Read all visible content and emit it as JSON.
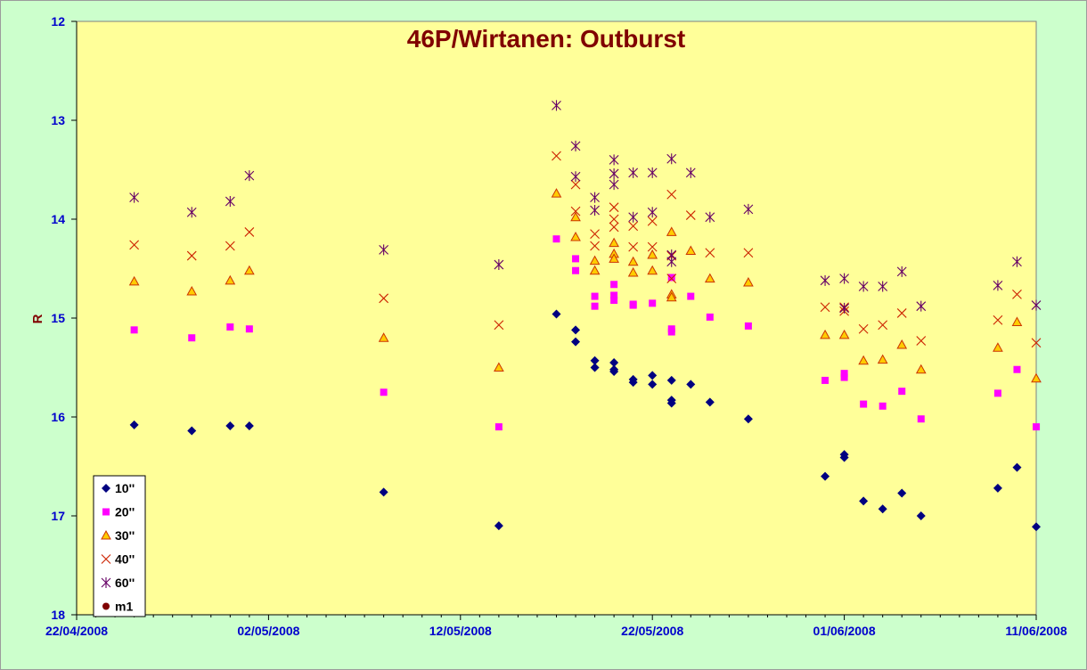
{
  "chart_data": {
    "type": "scatter",
    "title": "46P/Wirtanen: Outburst",
    "xlabel": "",
    "ylabel": "R",
    "ylim": [
      12,
      18
    ],
    "y_inverted": true,
    "y_ticks": [
      "12",
      "13",
      "14",
      "15",
      "16",
      "17",
      "18"
    ],
    "x_range": [
      "2008-04-22",
      "2008-06-11"
    ],
    "x_ticks": [
      "22/04/2008",
      "02/05/2008",
      "12/05/2008",
      "22/05/2008",
      "01/06/2008",
      "11/06/2008"
    ],
    "grid": false,
    "legend_position": "bottom-left",
    "colors": {
      "background": "#ccffcc",
      "plot_area": "#ffff99",
      "axis": "#000000",
      "title": "#800000",
      "ticks": "#0000cc",
      "series_10": "#000080",
      "series_20": "#ff00ff",
      "series_30_fill": "#ffcc00",
      "series_30_edge": "#cc3300",
      "series_40": "#cc2200",
      "series_60": "#660066",
      "series_m1": "#800000"
    },
    "series": [
      {
        "name": "10''",
        "marker": "diamond",
        "points": [
          [
            "2008-04-25",
            16.08
          ],
          [
            "2008-04-28",
            16.14
          ],
          [
            "2008-04-30",
            16.09
          ],
          [
            "2008-05-01",
            16.09
          ],
          [
            "2008-05-08",
            16.76
          ],
          [
            "2008-05-14",
            17.1
          ],
          [
            "2008-05-17",
            14.96
          ],
          [
            "2008-05-18",
            15.12
          ],
          [
            "2008-05-18",
            15.24
          ],
          [
            "2008-05-19",
            15.43
          ],
          [
            "2008-05-19",
            15.5
          ],
          [
            "2008-05-20",
            15.45
          ],
          [
            "2008-05-20",
            15.52
          ],
          [
            "2008-05-20",
            15.54
          ],
          [
            "2008-05-21",
            15.62
          ],
          [
            "2008-05-21",
            15.65
          ],
          [
            "2008-05-22",
            15.58
          ],
          [
            "2008-05-22",
            15.67
          ],
          [
            "2008-05-23",
            15.63
          ],
          [
            "2008-05-23",
            15.83
          ],
          [
            "2008-05-23",
            15.86
          ],
          [
            "2008-05-24",
            15.67
          ],
          [
            "2008-05-25",
            15.85
          ],
          [
            "2008-05-27",
            16.02
          ],
          [
            "2008-05-31",
            16.6
          ],
          [
            "2008-06-01",
            16.38
          ],
          [
            "2008-06-01",
            16.41
          ],
          [
            "2008-06-02",
            16.85
          ],
          [
            "2008-06-03",
            16.93
          ],
          [
            "2008-06-04",
            16.77
          ],
          [
            "2008-06-05",
            17.0
          ],
          [
            "2008-06-09",
            16.72
          ],
          [
            "2008-06-10",
            16.51
          ],
          [
            "2008-06-11",
            17.11
          ]
        ]
      },
      {
        "name": "20''",
        "marker": "square",
        "points": [
          [
            "2008-04-25",
            15.12
          ],
          [
            "2008-04-28",
            15.2
          ],
          [
            "2008-04-30",
            15.09
          ],
          [
            "2008-05-01",
            15.11
          ],
          [
            "2008-05-08",
            15.75
          ],
          [
            "2008-05-14",
            16.1
          ],
          [
            "2008-05-17",
            14.2
          ],
          [
            "2008-05-18",
            14.52
          ],
          [
            "2008-05-18",
            14.4
          ],
          [
            "2008-05-19",
            14.78
          ],
          [
            "2008-05-19",
            14.88
          ],
          [
            "2008-05-20",
            14.66
          ],
          [
            "2008-05-20",
            14.77
          ],
          [
            "2008-05-20",
            14.82
          ],
          [
            "2008-05-21",
            14.86
          ],
          [
            "2008-05-21",
            14.87
          ],
          [
            "2008-05-22",
            14.85
          ],
          [
            "2008-05-23",
            14.59
          ],
          [
            "2008-05-23",
            15.11
          ],
          [
            "2008-05-23",
            15.14
          ],
          [
            "2008-05-24",
            14.78
          ],
          [
            "2008-05-25",
            14.99
          ],
          [
            "2008-05-27",
            15.08
          ],
          [
            "2008-05-31",
            15.63
          ],
          [
            "2008-06-01",
            15.56
          ],
          [
            "2008-06-01",
            15.6
          ],
          [
            "2008-06-02",
            15.87
          ],
          [
            "2008-06-03",
            15.89
          ],
          [
            "2008-06-04",
            15.74
          ],
          [
            "2008-06-05",
            16.02
          ],
          [
            "2008-06-09",
            15.76
          ],
          [
            "2008-06-10",
            15.52
          ],
          [
            "2008-06-11",
            16.1
          ]
        ]
      },
      {
        "name": "30''",
        "marker": "triangle",
        "points": [
          [
            "2008-04-25",
            14.63
          ],
          [
            "2008-04-28",
            14.73
          ],
          [
            "2008-04-30",
            14.62
          ],
          [
            "2008-05-01",
            14.52
          ],
          [
            "2008-05-08",
            15.2
          ],
          [
            "2008-05-14",
            15.5
          ],
          [
            "2008-05-17",
            13.74
          ],
          [
            "2008-05-18",
            14.18
          ],
          [
            "2008-05-18",
            13.98
          ],
          [
            "2008-05-19",
            14.42
          ],
          [
            "2008-05-19",
            14.52
          ],
          [
            "2008-05-20",
            14.24
          ],
          [
            "2008-05-20",
            14.35
          ],
          [
            "2008-05-20",
            14.4
          ],
          [
            "2008-05-21",
            14.43
          ],
          [
            "2008-05-21",
            14.54
          ],
          [
            "2008-05-22",
            14.52
          ],
          [
            "2008-05-22",
            14.36
          ],
          [
            "2008-05-23",
            14.13
          ],
          [
            "2008-05-23",
            14.76
          ],
          [
            "2008-05-23",
            14.79
          ],
          [
            "2008-05-24",
            14.32
          ],
          [
            "2008-05-25",
            14.6
          ],
          [
            "2008-05-27",
            14.64
          ],
          [
            "2008-05-31",
            15.17
          ],
          [
            "2008-06-01",
            15.17
          ],
          [
            "2008-06-02",
            15.43
          ],
          [
            "2008-06-03",
            15.42
          ],
          [
            "2008-06-04",
            15.27
          ],
          [
            "2008-06-05",
            15.52
          ],
          [
            "2008-06-09",
            15.3
          ],
          [
            "2008-06-10",
            15.04
          ],
          [
            "2008-06-11",
            15.61
          ]
        ]
      },
      {
        "name": "40''",
        "marker": "x",
        "points": [
          [
            "2008-04-25",
            14.26
          ],
          [
            "2008-04-28",
            14.37
          ],
          [
            "2008-04-30",
            14.27
          ],
          [
            "2008-05-01",
            14.13
          ],
          [
            "2008-05-08",
            14.8
          ],
          [
            "2008-05-14",
            15.07
          ],
          [
            "2008-05-17",
            13.36
          ],
          [
            "2008-05-18",
            13.92
          ],
          [
            "2008-05-18",
            13.65
          ],
          [
            "2008-05-19",
            14.15
          ],
          [
            "2008-05-19",
            14.27
          ],
          [
            "2008-05-20",
            13.88
          ],
          [
            "2008-05-20",
            14.0
          ],
          [
            "2008-05-20",
            14.08
          ],
          [
            "2008-05-21",
            14.07
          ],
          [
            "2008-05-21",
            14.28
          ],
          [
            "2008-05-22",
            14.28
          ],
          [
            "2008-05-22",
            14.02
          ],
          [
            "2008-05-23",
            13.75
          ],
          [
            "2008-05-23",
            14.37
          ],
          [
            "2008-05-23",
            14.6
          ],
          [
            "2008-05-24",
            13.96
          ],
          [
            "2008-05-25",
            14.34
          ],
          [
            "2008-05-27",
            14.34
          ],
          [
            "2008-05-31",
            14.89
          ],
          [
            "2008-06-01",
            14.89
          ],
          [
            "2008-06-01",
            14.93
          ],
          [
            "2008-06-02",
            15.11
          ],
          [
            "2008-06-03",
            15.07
          ],
          [
            "2008-06-04",
            14.95
          ],
          [
            "2008-06-05",
            15.23
          ],
          [
            "2008-06-09",
            15.02
          ],
          [
            "2008-06-10",
            14.76
          ],
          [
            "2008-06-11",
            15.25
          ]
        ]
      },
      {
        "name": "60''",
        "marker": "asterisk",
        "points": [
          [
            "2008-04-25",
            13.78
          ],
          [
            "2008-04-28",
            13.93
          ],
          [
            "2008-04-30",
            13.82
          ],
          [
            "2008-05-01",
            13.56
          ],
          [
            "2008-05-08",
            14.31
          ],
          [
            "2008-05-14",
            14.46
          ],
          [
            "2008-05-17",
            12.85
          ],
          [
            "2008-05-18",
            13.26
          ],
          [
            "2008-05-18",
            13.57
          ],
          [
            "2008-05-19",
            13.78
          ],
          [
            "2008-05-19",
            13.91
          ],
          [
            "2008-05-20",
            13.4
          ],
          [
            "2008-05-20",
            13.54
          ],
          [
            "2008-05-20",
            13.65
          ],
          [
            "2008-05-21",
            13.53
          ],
          [
            "2008-05-21",
            13.98
          ],
          [
            "2008-05-22",
            13.53
          ],
          [
            "2008-05-22",
            13.93
          ],
          [
            "2008-05-23",
            13.39
          ],
          [
            "2008-05-23",
            14.36
          ],
          [
            "2008-05-23",
            14.43
          ],
          [
            "2008-05-24",
            13.53
          ],
          [
            "2008-05-25",
            13.98
          ],
          [
            "2008-05-27",
            13.9
          ],
          [
            "2008-05-31",
            14.62
          ],
          [
            "2008-06-01",
            14.6
          ],
          [
            "2008-06-01",
            14.9
          ],
          [
            "2008-06-02",
            14.68
          ],
          [
            "2008-06-03",
            14.68
          ],
          [
            "2008-06-04",
            14.53
          ],
          [
            "2008-06-05",
            14.88
          ],
          [
            "2008-06-09",
            14.67
          ],
          [
            "2008-06-10",
            14.43
          ],
          [
            "2008-06-11",
            14.87
          ]
        ]
      },
      {
        "name": "m1",
        "marker": "circle",
        "points": []
      }
    ]
  }
}
